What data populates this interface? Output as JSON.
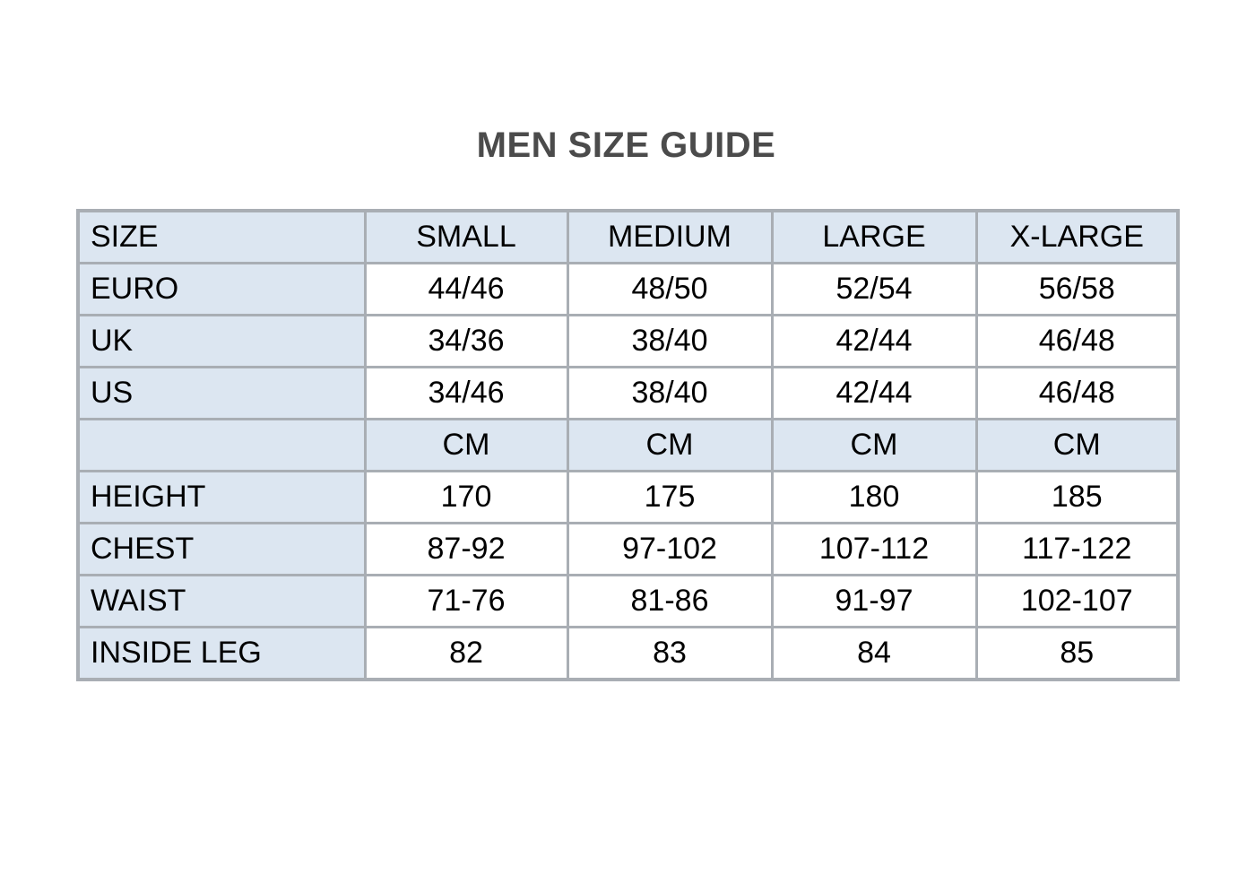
{
  "page": {
    "title": "MEN SIZE GUIDE"
  },
  "table": {
    "columns": [
      "SIZE",
      "SMALL",
      "MEDIUM",
      "LARGE",
      "X-LARGE"
    ],
    "rows": [
      {
        "label": "EURO",
        "values": [
          "44/46",
          "48/50",
          "52/54",
          "56/58"
        ],
        "highlight": false
      },
      {
        "label": "UK",
        "values": [
          "34/36",
          "38/40",
          "42/44",
          "46/48"
        ],
        "highlight": false
      },
      {
        "label": "US",
        "values": [
          "34/46",
          "38/40",
          "42/44",
          "46/48"
        ],
        "highlight": false
      },
      {
        "label": "",
        "values": [
          "CM",
          "CM",
          "CM",
          "CM"
        ],
        "highlight": true
      },
      {
        "label": "HEIGHT",
        "values": [
          "170",
          "175",
          "180",
          "185"
        ],
        "highlight": false
      },
      {
        "label": "CHEST",
        "values": [
          "87-92",
          "97-102",
          "107-112",
          "117-122"
        ],
        "highlight": false
      },
      {
        "label": "WAIST",
        "values": [
          "71-76",
          "81-86",
          "91-97",
          "102-107"
        ],
        "highlight": false
      },
      {
        "label": "INSIDE LEG",
        "values": [
          "82",
          "83",
          "84",
          "85"
        ],
        "highlight": false
      }
    ]
  },
  "colors": {
    "header_fill": "#dce6f1",
    "grid_border": "#a9aeb4",
    "title_color": "#4b4b4b",
    "cell_text": "#000000",
    "background": "#ffffff"
  }
}
